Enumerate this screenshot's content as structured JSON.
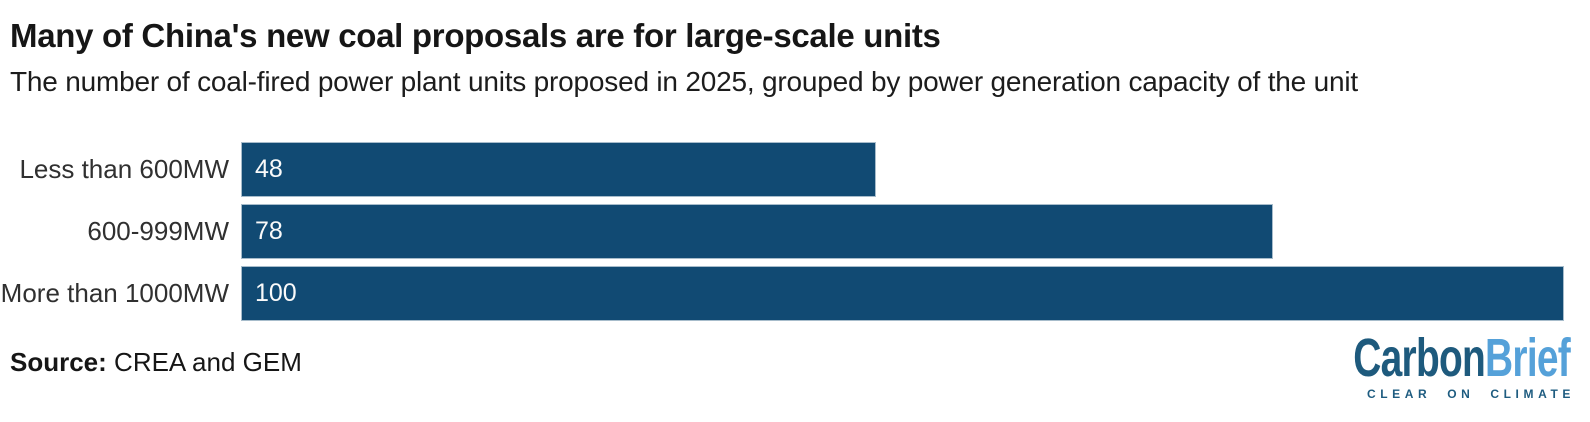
{
  "header": {
    "title": "Many of China's new coal proposals are for large-scale units",
    "subtitle": "The number of coal-fired power plant units proposed in 2025, grouped by power generation capacity of the unit"
  },
  "chart_data": {
    "type": "bar",
    "orientation": "horizontal",
    "title": "Many of China's new coal proposals are for large-scale units",
    "subtitle": "The number of coal-fired power plant units proposed in 2025, grouped by power generation capacity of the unit",
    "categories": [
      "Less than 600MW",
      "600-999MW",
      "More than 1000MW"
    ],
    "values": [
      48,
      78,
      100
    ],
    "xlabel": "",
    "ylabel": "",
    "xlim": [
      0,
      100
    ],
    "grid": false,
    "legend": false,
    "bar_color": "#114a73",
    "value_label_color": "#fafafa",
    "value_labels_position": "inside-left"
  },
  "source": {
    "label": "Source:",
    "text": " CREA and GEM"
  },
  "logo": {
    "word1": "Carbon",
    "word2": "Brief",
    "tagline": "CLEAR ON CLIMATE",
    "color_dark": "#1e5a7d",
    "color_light": "#55a1d9"
  }
}
